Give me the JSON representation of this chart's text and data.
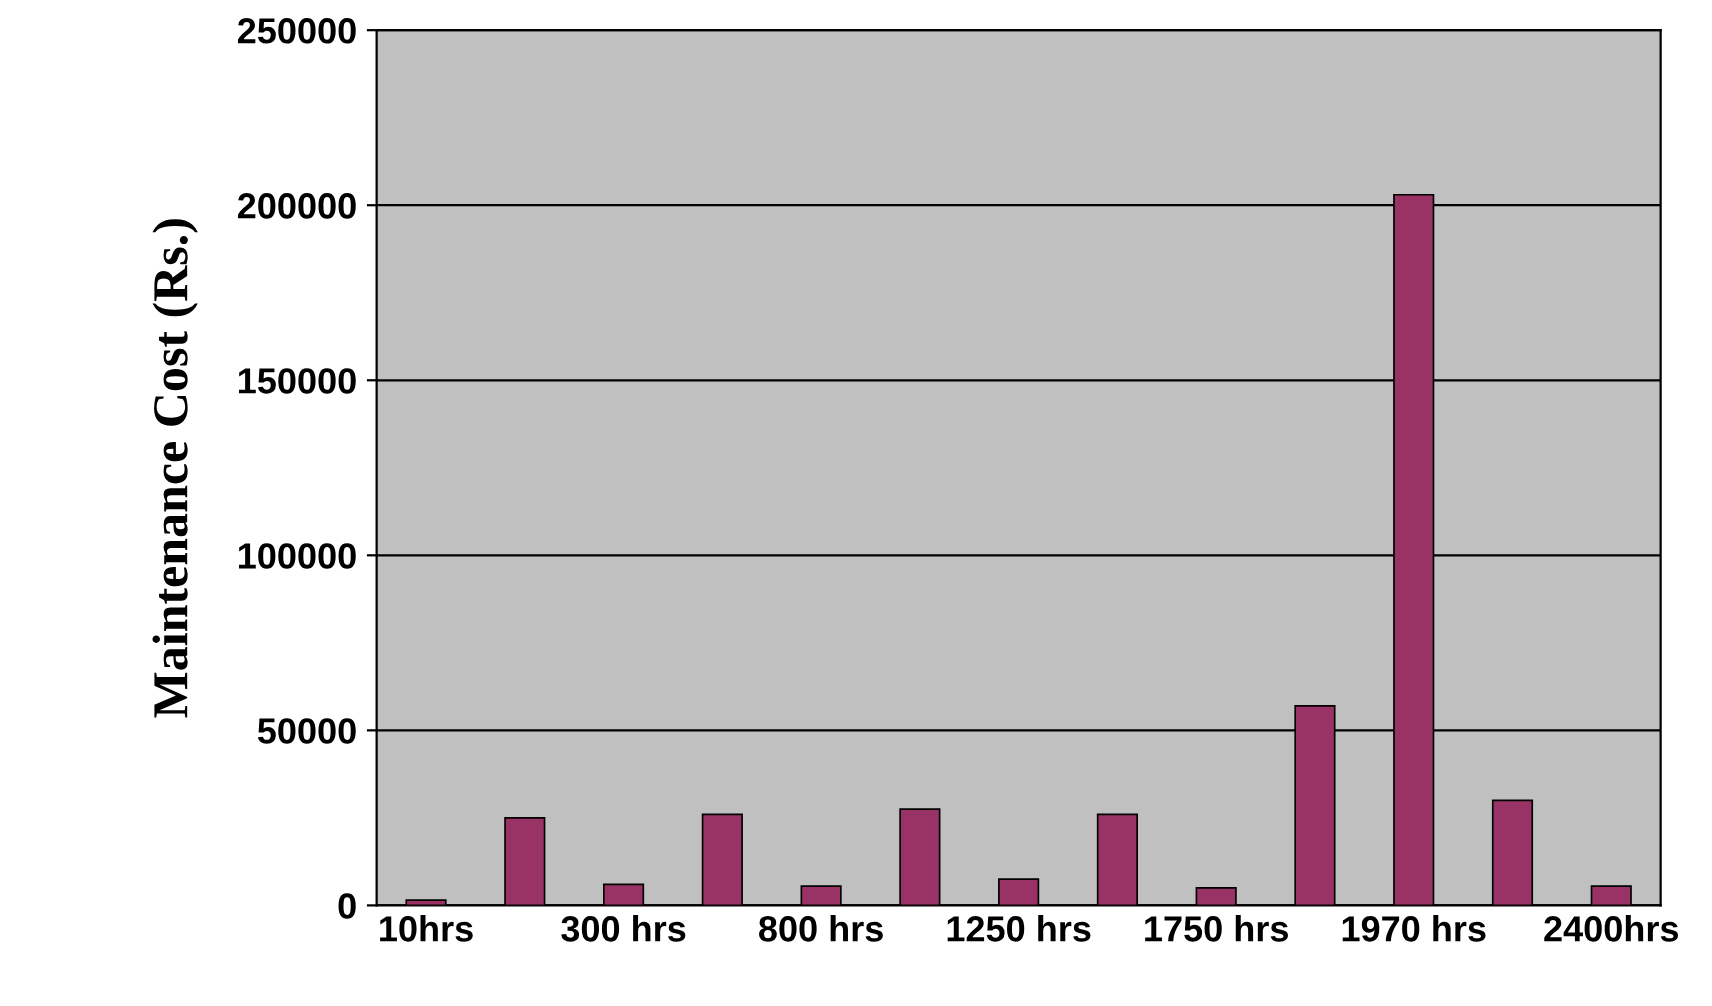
{
  "chart_data": {
    "type": "bar",
    "ylabel": "Maintenance Cost (Rs.)",
    "categories": [
      "10hrs",
      null,
      "300 hrs",
      null,
      "800 hrs",
      null,
      "1250 hrs",
      null,
      "1750 hrs",
      null,
      "1970 hrs",
      null,
      "2400hrs"
    ],
    "values": [
      1500,
      25000,
      6000,
      26000,
      5500,
      27500,
      7500,
      26000,
      5000,
      57000,
      203000,
      30000,
      5500
    ],
    "color": "#993366",
    "ylim": [
      0,
      250000
    ],
    "yticks": [
      0,
      50000,
      100000,
      150000,
      200000,
      250000
    ],
    "grid": "y",
    "legend": false
  }
}
